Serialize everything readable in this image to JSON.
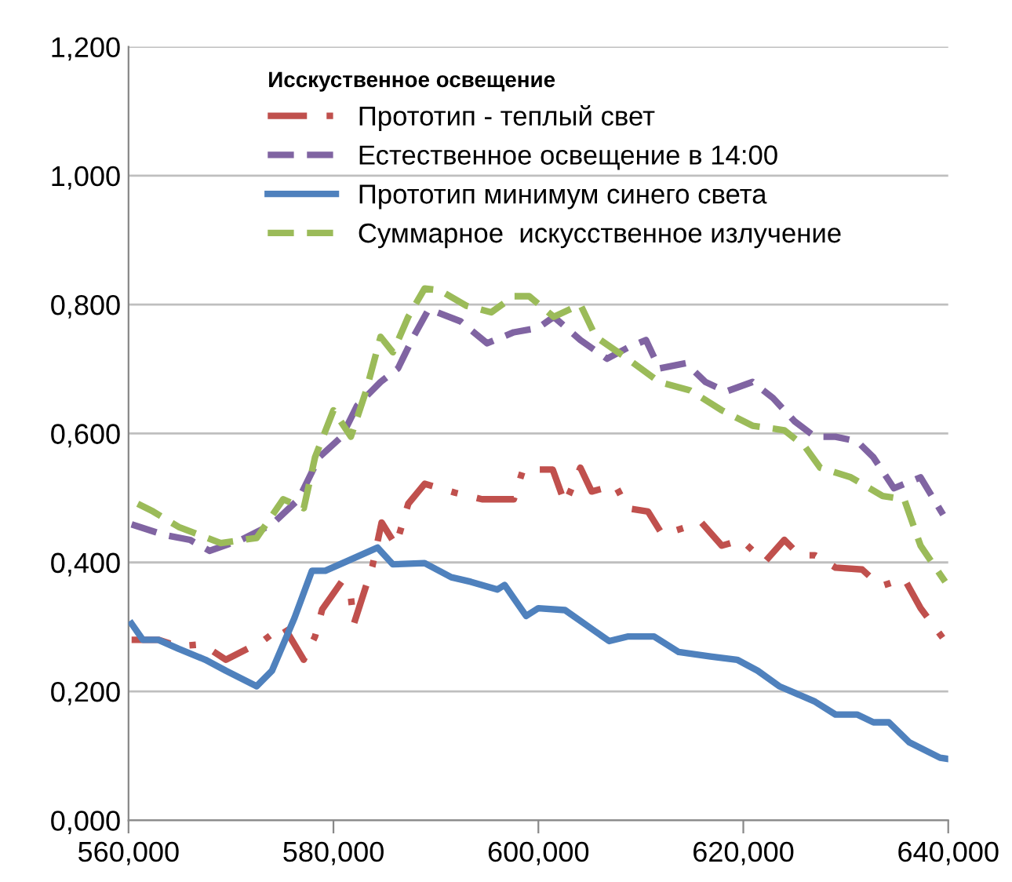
{
  "chart_data": {
    "type": "line",
    "legend_title": "Исскуственное освещение",
    "legend": "top",
    "grid": "y",
    "marker": "none",
    "xlim": [
      560,
      640
    ],
    "ylim": [
      0,
      1.2
    ],
    "xticks": [
      {
        "value": 560,
        "label": "560,000"
      },
      {
        "value": 580,
        "label": "580,000"
      },
      {
        "value": 600,
        "label": "600,000"
      },
      {
        "value": 620,
        "label": "620,000"
      },
      {
        "value": 640,
        "label": "640,000"
      }
    ],
    "yticks": [
      {
        "value": 0,
        "label": "0,000"
      },
      {
        "value": 0.2,
        "label": "0,200"
      },
      {
        "value": 0.4,
        "label": "0,400"
      },
      {
        "value": 0.6,
        "label": "0,600"
      },
      {
        "value": 0.8,
        "label": "0,800"
      },
      {
        "value": 1.0,
        "label": "1,000"
      },
      {
        "value": 1.2,
        "label": "1,200"
      }
    ],
    "series": [
      {
        "name": "Прототип - теплый свет",
        "color": "#c0504d",
        "line_style": "dashdot",
        "x": [
          560.3,
          562.9,
          564.9,
          567.2,
          569.5,
          573.1,
          575.1,
          577.1,
          578.2,
          578.9,
          580.8,
          581.7,
          582.0,
          583.8,
          584.7,
          586.1,
          587.3,
          588.9,
          591.9,
          594.5,
          597.6,
          598.5,
          601.4,
          602.6,
          604.1,
          605.2,
          607.5,
          608.7,
          610.7,
          612.1,
          615.9,
          617.9,
          619.8,
          622.1,
          624.0,
          625.5,
          627.0,
          629.0,
          631.6,
          633.4,
          635.7,
          637.3,
          639.7
        ],
        "values": [
          0.28,
          0.28,
          0.27,
          0.273,
          0.249,
          0.278,
          0.302,
          0.249,
          0.285,
          0.327,
          0.37,
          0.346,
          0.305,
          0.394,
          0.462,
          0.426,
          0.491,
          0.522,
          0.508,
          0.498,
          0.498,
          0.544,
          0.544,
          0.491,
          0.547,
          0.51,
          0.52,
          0.484,
          0.479,
          0.443,
          0.462,
          0.426,
          0.435,
          0.401,
          0.435,
          0.411,
          0.411,
          0.392,
          0.389,
          0.363,
          0.375,
          0.329,
          0.278
        ]
      },
      {
        "name": "Естественное освещение в 14:00",
        "color": "#8064a2",
        "line_style": "dashed",
        "x": [
          560.3,
          563.4,
          566.0,
          567.9,
          571.0,
          574.0,
          576.6,
          578.6,
          580.8,
          582.3,
          584.6,
          586.3,
          587.8,
          589.3,
          592.4,
          595.0,
          597.6,
          600.0,
          601.5,
          604.1,
          606.7,
          608.7,
          610.5,
          611.8,
          614.4,
          616.3,
          618.3,
          620.9,
          622.9,
          625.0,
          627.0,
          629.0,
          631.1,
          632.7,
          634.7,
          637.3,
          639.5
        ],
        "values": [
          0.459,
          0.443,
          0.435,
          0.418,
          0.435,
          0.459,
          0.498,
          0.563,
          0.595,
          0.643,
          0.68,
          0.701,
          0.75,
          0.793,
          0.774,
          0.74,
          0.757,
          0.764,
          0.781,
          0.745,
          0.716,
          0.733,
          0.745,
          0.701,
          0.709,
          0.68,
          0.665,
          0.68,
          0.655,
          0.619,
          0.595,
          0.595,
          0.588,
          0.563,
          0.515,
          0.532,
          0.474
        ]
      },
      {
        "name": "Прототип минимум синего света",
        "color": "#4f81bd",
        "line_style": "solid",
        "x": [
          560.3,
          561.4,
          562.9,
          564.9,
          567.5,
          569.5,
          572.5,
          574.0,
          576.2,
          577.9,
          579.2,
          581.2,
          584.3,
          585.8,
          588.9,
          591.5,
          593.4,
          596.0,
          596.7,
          598.8,
          600.0,
          602.6,
          606.9,
          608.7,
          611.3,
          613.7,
          616.8,
          619.4,
          621.4,
          623.5,
          627.0,
          629.0,
          631.1,
          632.7,
          634.2,
          636.2,
          639.2,
          640.0
        ],
        "values": [
          0.305,
          0.28,
          0.28,
          0.266,
          0.249,
          0.232,
          0.208,
          0.232,
          0.314,
          0.387,
          0.387,
          0.401,
          0.423,
          0.397,
          0.399,
          0.377,
          0.37,
          0.358,
          0.365,
          0.317,
          0.329,
          0.326,
          0.278,
          0.285,
          0.285,
          0.261,
          0.254,
          0.249,
          0.232,
          0.208,
          0.184,
          0.164,
          0.164,
          0.152,
          0.152,
          0.121,
          0.097,
          0.095
        ]
      },
      {
        "name": "Суммарное  искусственное излучение",
        "color": "#9bbb59",
        "line_style": "dashed",
        "x": [
          560.9,
          562.4,
          564.9,
          569.0,
          572.5,
          575.1,
          577.1,
          578.2,
          580.0,
          581.7,
          583.2,
          584.6,
          585.8,
          587.3,
          588.9,
          590.4,
          593.0,
          595.4,
          597.6,
          599.1,
          601.5,
          604.1,
          605.6,
          608.7,
          611.8,
          614.8,
          617.9,
          620.9,
          624.0,
          626.0,
          627.5,
          630.5,
          633.6,
          635.7,
          637.3,
          639.7
        ],
        "values": [
          0.491,
          0.479,
          0.455,
          0.43,
          0.438,
          0.498,
          0.484,
          0.563,
          0.636,
          0.595,
          0.667,
          0.75,
          0.726,
          0.781,
          0.825,
          0.822,
          0.798,
          0.788,
          0.813,
          0.813,
          0.781,
          0.8,
          0.75,
          0.716,
          0.68,
          0.667,
          0.636,
          0.612,
          0.605,
          0.58,
          0.547,
          0.532,
          0.503,
          0.498,
          0.426,
          0.37
        ]
      }
    ]
  }
}
